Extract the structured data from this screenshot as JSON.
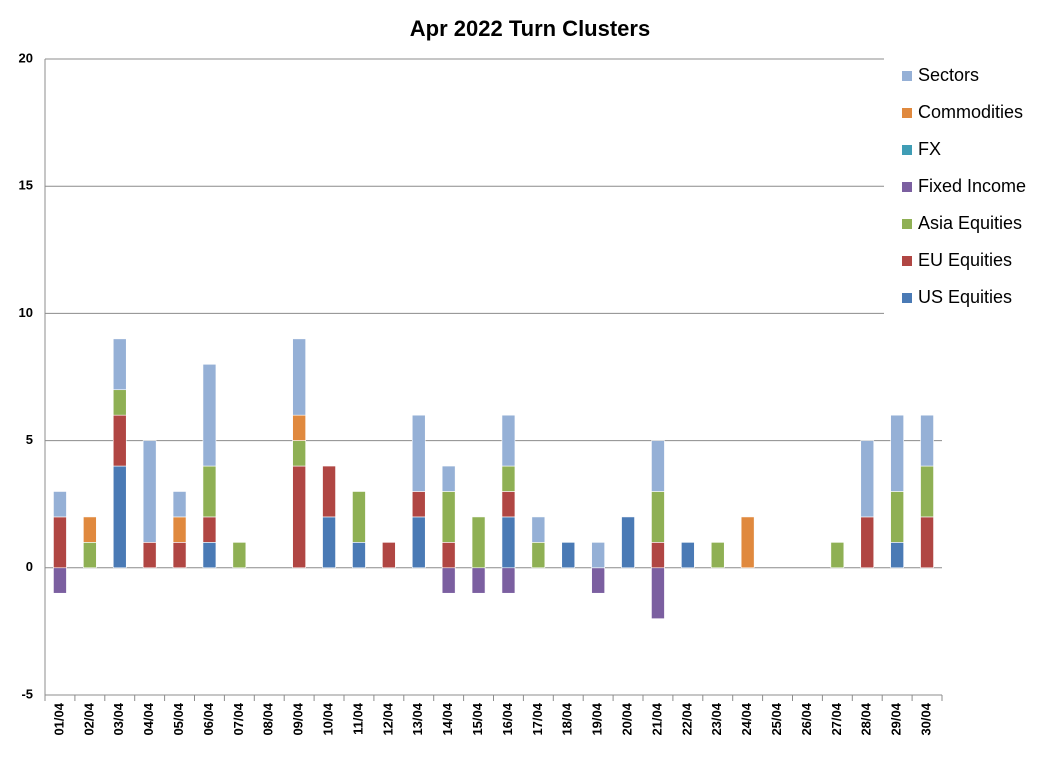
{
  "chart_data": {
    "type": "stacked-bar",
    "title": "Apr 2022 Turn Clusters",
    "categories": [
      "01/04",
      "02/04",
      "03/04",
      "04/04",
      "05/04",
      "06/04",
      "07/04",
      "08/04",
      "09/04",
      "10/04",
      "11/04",
      "12/04",
      "13/04",
      "14/04",
      "15/04",
      "16/04",
      "17/04",
      "18/04",
      "19/04",
      "20/04",
      "21/04",
      "22/04",
      "23/04",
      "24/04",
      "25/04",
      "26/04",
      "27/04",
      "28/04",
      "29/04",
      "30/04"
    ],
    "series": [
      {
        "name": "US Equities",
        "color": "#4a7ab5",
        "values": [
          0,
          0,
          4,
          0,
          0,
          1,
          0,
          0,
          0,
          2,
          1,
          0,
          2,
          0,
          0,
          2,
          0,
          1,
          0,
          2,
          0,
          1,
          0,
          0,
          0,
          0,
          0,
          0,
          1,
          0
        ]
      },
      {
        "name": "EU Equities",
        "color": "#b04643",
        "values": [
          2,
          0,
          2,
          1,
          1,
          1,
          0,
          0,
          4,
          2,
          0,
          1,
          1,
          1,
          0,
          1,
          0,
          0,
          0,
          0,
          1,
          0,
          0,
          0,
          0,
          0,
          0,
          2,
          0,
          2
        ]
      },
      {
        "name": "Asia Equities",
        "color": "#8fb054",
        "values": [
          0,
          1,
          1,
          0,
          0,
          2,
          1,
          0,
          1,
          0,
          2,
          0,
          0,
          2,
          2,
          1,
          1,
          0,
          0,
          0,
          2,
          0,
          1,
          0,
          0,
          0,
          1,
          0,
          2,
          2
        ]
      },
      {
        "name": "Fixed Income",
        "color": "#7b5fa0",
        "values": [
          -1,
          0,
          0,
          0,
          0,
          0,
          0,
          0,
          0,
          0,
          0,
          0,
          0,
          -1,
          -1,
          -1,
          0,
          0,
          -1,
          0,
          -2,
          0,
          0,
          0,
          0,
          0,
          0,
          0,
          0,
          0
        ]
      },
      {
        "name": "FX",
        "color": "#3f9db5",
        "values": [
          0,
          0,
          0,
          0,
          0,
          0,
          0,
          0,
          0,
          0,
          0,
          0,
          0,
          0,
          0,
          0,
          0,
          0,
          0,
          0,
          0,
          0,
          0,
          0,
          0,
          0,
          0,
          0,
          0,
          0
        ]
      },
      {
        "name": "Commodities",
        "color": "#e0893e",
        "values": [
          0,
          1,
          0,
          0,
          1,
          0,
          0,
          0,
          1,
          0,
          0,
          0,
          0,
          0,
          0,
          0,
          0,
          0,
          0,
          0,
          0,
          0,
          0,
          2,
          0,
          0,
          0,
          0,
          0,
          0
        ]
      },
      {
        "name": "Sectors",
        "color": "#95b0d6",
        "values": [
          1,
          0,
          2,
          4,
          1,
          4,
          0,
          0,
          3,
          0,
          0,
          0,
          3,
          1,
          0,
          2,
          1,
          0,
          1,
          0,
          2,
          0,
          0,
          0,
          0,
          0,
          0,
          3,
          3,
          2
        ]
      }
    ],
    "ylim": [
      -5,
      20
    ],
    "yticks": [
      -5,
      0,
      5,
      10,
      15,
      20
    ],
    "grid": true,
    "legend": "right"
  }
}
